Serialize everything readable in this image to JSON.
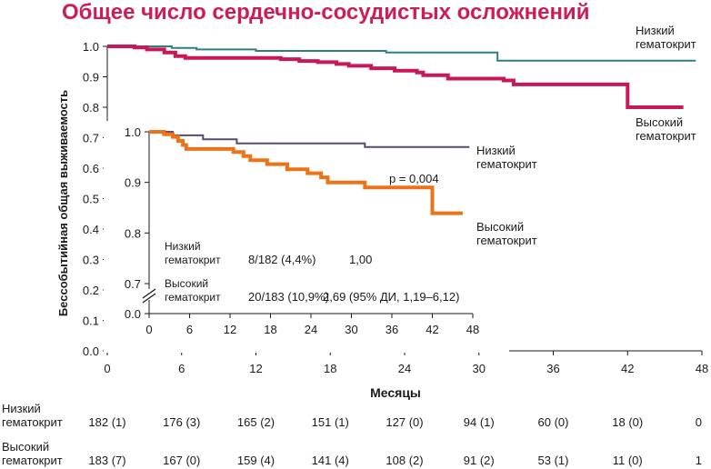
{
  "title": "Общее число сердечно-сосудистых осложнений",
  "chart_data": [
    {
      "type": "line",
      "title": "Общее число сердечно-сосудистых осложнений",
      "xlabel": "Месяцы",
      "ylabel": "Бессобытийная общая выживаемость",
      "xlim": [
        0,
        48
      ],
      "ylim": [
        0.0,
        1.0
      ],
      "xticks": [
        "0",
        "6",
        "12",
        "18",
        "24",
        "30",
        "36",
        "42",
        "48"
      ],
      "yticks": [
        "0.0",
        "0.1",
        "0.2",
        "0.3",
        "0.4",
        "0.5",
        "0.6",
        "0.7",
        "0.8",
        "0.9",
        "1.0"
      ],
      "series": [
        {
          "name": "Низкий гематокрит",
          "color": "#2e7f82",
          "step": true,
          "points": [
            [
              0,
              1.0
            ],
            [
              5.2,
              1.0
            ],
            [
              5.2,
              0.995
            ],
            [
              7.2,
              0.995
            ],
            [
              7.2,
              0.99
            ],
            [
              12,
              0.99
            ],
            [
              12,
              0.985
            ],
            [
              22.5,
              0.985
            ],
            [
              22.5,
              0.98
            ],
            [
              31.5,
              0.98
            ],
            [
              31.5,
              0.953
            ],
            [
              47.5,
              0.953
            ]
          ]
        },
        {
          "name": "Высокий гематокрит",
          "color": "#c8185a",
          "step": true,
          "points": [
            [
              0,
              1.0
            ],
            [
              2.2,
              1.0
            ],
            [
              2.2,
              0.996
            ],
            [
              3.2,
              0.996
            ],
            [
              3.2,
              0.99
            ],
            [
              4.6,
              0.99
            ],
            [
              4.6,
              0.98
            ],
            [
              5.5,
              0.98
            ],
            [
              5.5,
              0.968
            ],
            [
              6.3,
              0.968
            ],
            [
              6.3,
              0.962
            ],
            [
              14,
              0.962
            ],
            [
              14,
              0.958
            ],
            [
              15.5,
              0.958
            ],
            [
              15.5,
              0.952
            ],
            [
              17,
              0.952
            ],
            [
              17,
              0.948
            ],
            [
              18.5,
              0.948
            ],
            [
              18.5,
              0.942
            ],
            [
              19.5,
              0.942
            ],
            [
              19.5,
              0.936
            ],
            [
              21.3,
              0.936
            ],
            [
              21.3,
              0.928
            ],
            [
              23.2,
              0.928
            ],
            [
              23.2,
              0.92
            ],
            [
              25,
              0.92
            ],
            [
              25,
              0.914
            ],
            [
              25.5,
              0.914
            ],
            [
              25.5,
              0.905
            ],
            [
              27.5,
              0.905
            ],
            [
              27.5,
              0.894
            ],
            [
              32,
              0.894
            ],
            [
              32,
              0.888
            ],
            [
              32.8,
              0.888
            ],
            [
              32.8,
              0.875
            ],
            [
              42,
              0.875
            ],
            [
              42,
              0.8
            ],
            [
              46.5,
              0.8
            ]
          ]
        }
      ],
      "labels": {
        "low": "Низкий\nгематокрит",
        "high": "Высокий\nгематокрит"
      }
    },
    {
      "type": "line",
      "title": "",
      "xlim": [
        0,
        48
      ],
      "ylim": [
        0.7,
        1.0
      ],
      "axis_break": true,
      "y_origin_label": "0.0",
      "xticks": [
        "0",
        "6",
        "12",
        "18",
        "24",
        "30",
        "36",
        "42",
        "48"
      ],
      "yticks": [
        "0.7",
        "0.8",
        "0.9",
        "1.0"
      ],
      "series": [
        {
          "name": "Низкий гематокрит",
          "color": "#5a4a72",
          "step": true,
          "points": [
            [
              0,
              1.0
            ],
            [
              3.5,
              1.0
            ],
            [
              3.5,
              0.993
            ],
            [
              8,
              0.993
            ],
            [
              8,
              0.985
            ],
            [
              13,
              0.985
            ],
            [
              13,
              0.977
            ],
            [
              32,
              0.977
            ],
            [
              32,
              0.97
            ],
            [
              47.5,
              0.97
            ]
          ]
        },
        {
          "name": "Высокий гематокрит",
          "color": "#ee7318",
          "step": true,
          "points": [
            [
              0,
              1.0
            ],
            [
              2.2,
              1.0
            ],
            [
              2.2,
              0.995
            ],
            [
              3.5,
              0.995
            ],
            [
              3.5,
              0.99
            ],
            [
              4.3,
              0.99
            ],
            [
              4.3,
              0.982
            ],
            [
              5,
              0.982
            ],
            [
              5,
              0.974
            ],
            [
              5.5,
              0.974
            ],
            [
              5.5,
              0.966
            ],
            [
              12.5,
              0.966
            ],
            [
              12.5,
              0.96
            ],
            [
              14,
              0.96
            ],
            [
              14,
              0.952
            ],
            [
              15,
              0.952
            ],
            [
              15,
              0.944
            ],
            [
              17.5,
              0.944
            ],
            [
              17.5,
              0.936
            ],
            [
              20.5,
              0.936
            ],
            [
              20.5,
              0.926
            ],
            [
              23.5,
              0.926
            ],
            [
              23.5,
              0.918
            ],
            [
              25.5,
              0.918
            ],
            [
              25.5,
              0.91
            ],
            [
              26.5,
              0.91
            ],
            [
              26.5,
              0.9
            ],
            [
              32,
              0.9
            ],
            [
              32,
              0.89
            ],
            [
              42,
              0.89
            ],
            [
              42,
              0.839
            ],
            [
              46.5,
              0.839
            ]
          ]
        }
      ],
      "labels": {
        "low": "Низкий\nгематокрит",
        "high": "Высокий\nгематокрит",
        "pvalue": "p = 0,004"
      },
      "stats": [
        {
          "label": "Низкий\nгематокрит",
          "events": "8/182 (4,4%)",
          "hr": "1,00"
        },
        {
          "label": "Высокий\nгематокрит",
          "events": "20/183 (10,9%)",
          "hr": "2,69 (95% ДИ, 1,19–6,12)"
        }
      ]
    }
  ],
  "risk_table": {
    "rows": [
      {
        "label": "Низкий\nгематокрит",
        "values": [
          "182 (1)",
          "176 (3)",
          "165 (2)",
          "151 (1)",
          "127 (0)",
          "94 (1)",
          "60 (0)",
          "18 (0)",
          "0"
        ]
      },
      {
        "label": "Высокий\nгематокрит",
        "values": [
          "183 (7)",
          "167 (0)",
          "159 (4)",
          "141 (4)",
          "108 (2)",
          "91 (2)",
          "53 (1)",
          "11 (0)",
          "1"
        ]
      }
    ]
  }
}
